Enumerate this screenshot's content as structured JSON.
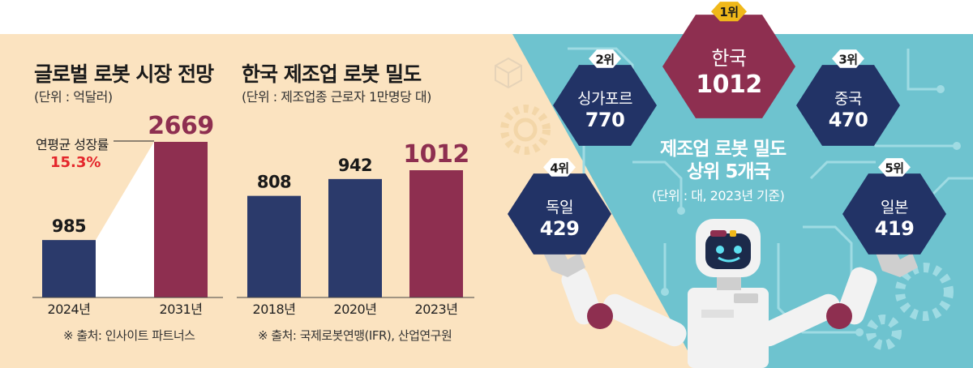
{
  "colors": {
    "navy": "#2b3a6b",
    "maroon": "#8e2f50",
    "peach": "#fbe3c0",
    "teal": "#6ec3cf",
    "hex_dark": "#223366",
    "gold_badge": "#f0b81a",
    "red_text": "#e4262b"
  },
  "left": {
    "title": "글로벌 로봇 시장 전망",
    "unit": "(단위 : 억달러)",
    "cagr_label": "연평균 성장률",
    "cagr_value": "15.3%",
    "source": "※ 출처: 인사이트 파트너스"
  },
  "middle": {
    "title": "한국 제조업 로봇 밀도",
    "unit": "(단위 : 제조업종 근로자 1만명당 대)",
    "source": "※ 출처: 국제로봇연맹(IFR), 산업연구원"
  },
  "right": {
    "title_line1": "제조업 로봇 밀도",
    "title_line2": "상위 5개국",
    "unit": "(단위 : 대, 2023년 기준)",
    "ranks": [
      {
        "rank": "1위",
        "country": "한국",
        "value": "1012"
      },
      {
        "rank": "2위",
        "country": "싱가포르",
        "value": "770"
      },
      {
        "rank": "3위",
        "country": "중국",
        "value": "470"
      },
      {
        "rank": "4위",
        "country": "독일",
        "value": "429"
      },
      {
        "rank": "5위",
        "country": "일본",
        "value": "419"
      }
    ]
  },
  "chart_data": [
    {
      "type": "bar",
      "title": "글로벌 로봇 시장 전망",
      "unit": "(단위 : 억달러)",
      "categories": [
        "2024년",
        "2031년"
      ],
      "values": [
        985,
        2669
      ],
      "value_labels": [
        "985",
        "2669"
      ],
      "ylim": [
        0,
        2669
      ],
      "bar_colors": [
        "#2b3a6b",
        "#8e2f50"
      ]
    },
    {
      "type": "bar",
      "title": "한국 제조업 로봇 밀도",
      "unit": "(단위 : 제조업종 근로자 1만명당 대)",
      "categories": [
        "2018년",
        "2020년",
        "2023년"
      ],
      "values": [
        808,
        942,
        1012
      ],
      "value_labels": [
        "808",
        "942",
        "1012"
      ],
      "ylim": [
        0,
        1190
      ],
      "bar_colors": [
        "#2b3a6b",
        "#2b3a6b",
        "#8e2f50"
      ]
    }
  ]
}
